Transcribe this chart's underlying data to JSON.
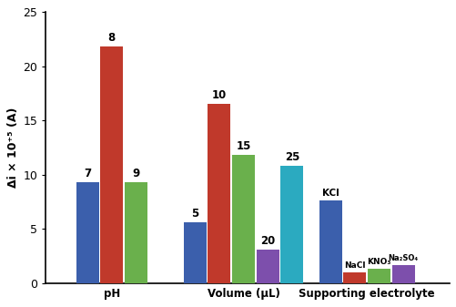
{
  "ylabel": "Δi × 10⁺⁵ (A)",
  "ylim": [
    0,
    25
  ],
  "yticks": [
    0,
    5,
    10,
    15,
    20,
    25
  ],
  "pH": {
    "bars": [
      {
        "label": "7",
        "value": 9.3,
        "color": "#3b5fac"
      },
      {
        "label": "8",
        "value": 21.8,
        "color": "#c0392b"
      },
      {
        "label": "9",
        "value": 9.3,
        "color": "#6ab04c"
      }
    ]
  },
  "Volume": {
    "bars": [
      {
        "label": "5",
        "value": 5.6,
        "color": "#3b5fac"
      },
      {
        "label": "10",
        "value": 16.5,
        "color": "#c0392b"
      },
      {
        "label": "15",
        "value": 11.8,
        "color": "#6ab04c"
      },
      {
        "label": "20",
        "value": 3.1,
        "color": "#7d4fac"
      },
      {
        "label": "25",
        "value": 10.8,
        "color": "#2baac0"
      }
    ]
  },
  "Supporting": {
    "bars": [
      {
        "label": "KCl",
        "value": 7.6,
        "color": "#3b5fac"
      },
      {
        "label": "NaCl",
        "value": 1.0,
        "color": "#c0392b"
      },
      {
        "label": "KNO₃",
        "value": 1.3,
        "color": "#6ab04c"
      },
      {
        "label": "Na₂SO₄",
        "value": 1.7,
        "color": "#7d4fac"
      }
    ]
  },
  "bar_width": 0.055,
  "background_color": "#ffffff"
}
